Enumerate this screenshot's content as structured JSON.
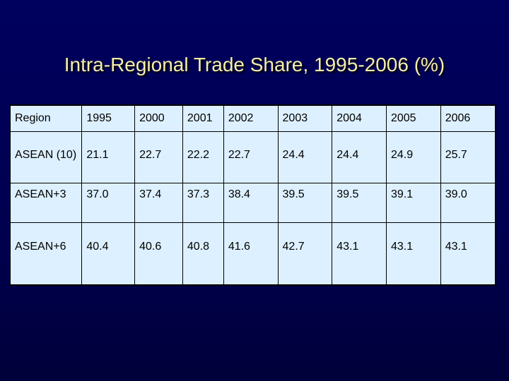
{
  "title": "Intra-Regional Trade Share, 1995-2006 (%)",
  "table": {
    "header": [
      "Region",
      "1995",
      "2000",
      "2001",
      "2002",
      "2003",
      "2004",
      "2005",
      "2006"
    ],
    "rows": [
      [
        "ASEAN (10)",
        "21.1",
        "22.7",
        "22.2",
        "22.7",
        "24.4",
        "24.4",
        "24.9",
        "25.7"
      ],
      [
        "ASEAN+3",
        "37.0",
        "37.4",
        "37.3",
        "38.4",
        "39.5",
        "39.5",
        "39.1",
        "39.0"
      ],
      [
        "ASEAN+6",
        "40.4",
        "40.6",
        "40.8",
        "41.6",
        "42.7",
        "43.1",
        "43.1",
        "43.1"
      ]
    ]
  }
}
